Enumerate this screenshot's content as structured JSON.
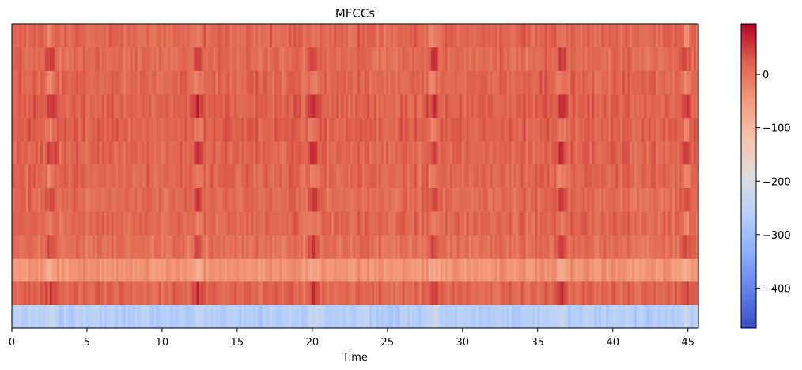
{
  "chart_data": {
    "type": "heatmap",
    "title": "MFCCs",
    "xlabel": "Time",
    "ylabel": "",
    "xlim": [
      0,
      45.7
    ],
    "x_ticks": [
      0,
      5,
      10,
      15,
      20,
      25,
      30,
      35,
      40,
      45
    ],
    "x_tick_labels": [
      "0",
      "5",
      "10",
      "15",
      "20",
      "25",
      "30",
      "35",
      "40",
      "45"
    ],
    "n_coefficients": 13,
    "row_mean_values": [
      -265,
      15,
      -40,
      5,
      15,
      10,
      15,
      15,
      20,
      20,
      15,
      10,
      15
    ],
    "colorbar": {
      "colormap": "coolwarm",
      "vmin": -475,
      "vmax": 95,
      "ticks": [
        0,
        -100,
        -200,
        -300,
        -400
      ],
      "tick_labels": [
        "0",
        "−100",
        "−200",
        "−300",
        "−400"
      ]
    },
    "dark_columns_at_time": [
      2.5,
      12.3,
      20.0,
      28.0,
      36.5,
      44.8
    ],
    "grid": false
  }
}
